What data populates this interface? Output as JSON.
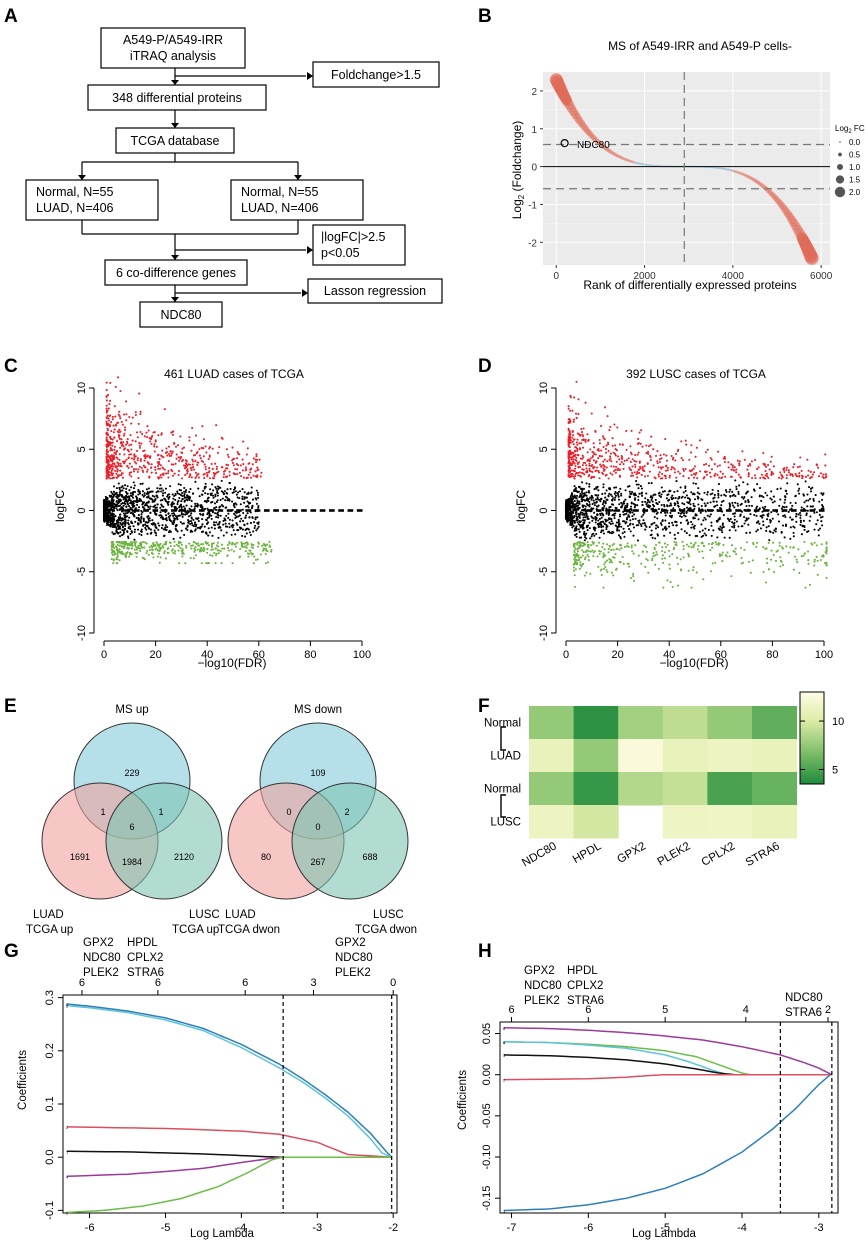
{
  "panel_labels": [
    "A",
    "B",
    "C",
    "D",
    "E",
    "F",
    "G",
    "H"
  ],
  "flowchart": {
    "boxes": [
      "A549-P/A549-IRR",
      "iTRAQ  analysis",
      "348  differential proteins",
      "TCGA database",
      "Normal, N=55",
      "LUAD, N=406",
      "Normal, N=55",
      "LUAD, N=406",
      "6 co-difference genes",
      "NDC80"
    ],
    "side_boxes": [
      "Foldchange>1.5",
      "|logFC|>2.5",
      "p<0.05",
      "Lasson regression"
    ]
  },
  "chart_data": [
    {
      "panel": "B",
      "type": "scatter",
      "title": "MS of A549-IRR and A549-P cells-",
      "xlabel": "Rank of differentially expressed proteins",
      "ylabel_main": "Log",
      "ylabel_sub": "2",
      "ylabel_rest": " (Foldchange)",
      "xlim": [
        -300,
        6200
      ],
      "ylim": [
        -2.6,
        2.5
      ],
      "xticks": [
        0,
        2000,
        4000,
        6000
      ],
      "yticks": [
        -2,
        -1,
        0,
        1,
        2
      ],
      "hlines_dashed": [
        0.585,
        -0.585
      ],
      "vline_dashed": 2900,
      "annotation": "NDC80",
      "annotation_point": [
        190,
        0.62
      ],
      "legend_title": "Log",
      "legend_title_sub": "2",
      "legend_title_rest": " FC",
      "legend_entries": [
        "0.0",
        "0.5",
        "1.0",
        "1.5",
        "2.0"
      ],
      "n_points": 5800,
      "max_fc": 2.3,
      "min_fc": -2.45
    },
    {
      "panel": "C",
      "type": "scatter",
      "title": "461 LUAD cases of TCGA",
      "xlabel": "−log10(FDR)",
      "ylabel": "logFC",
      "xlim": [
        0,
        100
      ],
      "ylim": [
        -10,
        10
      ],
      "xticks": [
        0,
        20,
        40,
        60,
        80,
        100
      ],
      "yticks": [
        -10,
        -5,
        0,
        5,
        10
      ],
      "threshold": 2.5,
      "up_max": 11.3,
      "down_min": -4.3,
      "x_spread": 60
    },
    {
      "panel": "D",
      "type": "scatter",
      "title": "392 LUSC cases of TCGA",
      "xlabel": "−log10(FDR)",
      "ylabel": "logFC",
      "xlim": [
        0,
        100
      ],
      "ylim": [
        -10,
        10
      ],
      "xticks": [
        0,
        20,
        40,
        60,
        80,
        100
      ],
      "yticks": [
        -10,
        -5,
        0,
        5,
        10
      ],
      "threshold": 2.5,
      "up_max": 10.5,
      "down_min": -6.3,
      "x_spread": 100
    },
    {
      "panel": "E1",
      "type": "venn",
      "sets": [
        "MS up",
        "LUAD\nTCGA up",
        "LUSC\nTCGA up"
      ],
      "regions": {
        "a_only": 229,
        "ab": 1,
        "ac": 1,
        "abc": 6,
        "b_only": 1691,
        "bc": 1984,
        "c_only": 2120
      }
    },
    {
      "panel": "E2",
      "type": "venn",
      "sets": [
        "MS down",
        "LUAD\nTCGA dwon",
        "LUSC\nTCGA dwon"
      ],
      "regions": {
        "a_only": 109,
        "ab": 0,
        "ac": 2,
        "abc": 0,
        "b_only": 80,
        "bc": 267,
        "c_only": 688
      }
    },
    {
      "panel": "F",
      "type": "heatmap",
      "rows": [
        "Normal",
        "LUAD",
        "Normal",
        "LUSC"
      ],
      "columns": [
        "NDC80",
        "HPDL",
        "GPX2",
        "PLEK2",
        "CPLX2",
        "STRA6"
      ],
      "values": [
        [
          7.5,
          4.0,
          8.0,
          9.0,
          7.5,
          5.8
        ],
        [
          11.0,
          7.5,
          12.5,
          11.0,
          11.3,
          11.0
        ],
        [
          7.5,
          4.3,
          8.6,
          9.2,
          5.0,
          6.0
        ],
        [
          11.3,
          9.7,
          13.5,
          11.4,
          11.5,
          11.0
        ]
      ],
      "colorbar_ticks": [
        5,
        10
      ],
      "vmin": 3.5,
      "vmax": 13
    },
    {
      "panel": "G",
      "type": "line",
      "xlabel": "Log Lambda",
      "ylabel": "Coefficients",
      "xlim": [
        -6.35,
        -1.95
      ],
      "ylim": [
        -0.105,
        0.305
      ],
      "xticks": [
        -6,
        -5,
        -4,
        -3,
        -2
      ],
      "yticks": [
        -0.1,
        0.0,
        0.1,
        0.2,
        0.3
      ],
      "ytick_labels": [
        "-0.1",
        "0.0",
        "0.1",
        "0.2",
        "0.3"
      ],
      "top_ticks": [
        -6.1,
        -5.1,
        -3.95,
        -3.05,
        -2.0
      ],
      "top_tick_labels": [
        "6",
        "6",
        "6",
        "3",
        "0"
      ],
      "top_gene_labels": [
        "GPX2",
        "NDC80",
        "PLEK2",
        "HPDL",
        "CPLX2",
        "STRA6",
        "GPX2",
        "NDC80",
        "PLEK2"
      ],
      "vlines": [
        -3.45,
        -2.02
      ],
      "series": [
        {
          "name": "6",
          "color": "#2e7fb8",
          "x": [
            -6.3,
            -6,
            -5.5,
            -5,
            -4.5,
            -4,
            -3.5,
            -3.2,
            -2.9,
            -2.6,
            -2.3,
            -2.1,
            -2.02
          ],
          "y": [
            0.288,
            0.284,
            0.275,
            0.262,
            0.242,
            0.212,
            0.175,
            0.148,
            0.118,
            0.085,
            0.045,
            0.012,
            0
          ]
        },
        {
          "name": "5",
          "color": "#5ec4d8",
          "x": [
            -6.3,
            -6,
            -5.5,
            -5,
            -4.5,
            -4,
            -3.5,
            -3.2,
            -2.9,
            -2.6,
            -2.3,
            -2.15,
            -2.02
          ],
          "y": [
            0.285,
            0.281,
            0.272,
            0.258,
            0.238,
            0.206,
            0.168,
            0.142,
            0.112,
            0.078,
            0.035,
            0.008,
            0
          ]
        },
        {
          "name": "2",
          "color": "#d95060",
          "x": [
            -6.3,
            -5,
            -4,
            -3.5,
            -3,
            -2.6,
            -2.02
          ],
          "y": [
            0.057,
            0.054,
            0.049,
            0.043,
            0.028,
            0.005,
            0
          ]
        },
        {
          "name": "1",
          "color": "#111111",
          "x": [
            -6.3,
            -5.5,
            -5,
            -4.5,
            -4,
            -3.6,
            -3.45,
            -2.02
          ],
          "y": [
            0.011,
            0.01,
            0.008,
            0.006,
            0.003,
            0.0005,
            0,
            0
          ]
        },
        {
          "name": "4",
          "color": "#9c3a9c",
          "x": [
            -6.3,
            -5.5,
            -5,
            -4.5,
            -4,
            -3.6,
            -3.45,
            -2.02
          ],
          "y": [
            -0.036,
            -0.032,
            -0.027,
            -0.021,
            -0.01,
            -0.002,
            0,
            0
          ]
        },
        {
          "name": "3",
          "color": "#6cbd45",
          "x": [
            -6.3,
            -5.8,
            -5.3,
            -4.8,
            -4.3,
            -3.9,
            -3.6,
            -3.45,
            -2.02
          ],
          "y": [
            -0.104,
            -0.1,
            -0.092,
            -0.078,
            -0.055,
            -0.028,
            -0.005,
            0,
            0
          ]
        }
      ]
    },
    {
      "panel": "H",
      "type": "line",
      "xlabel": "Log Lambda",
      "ylabel": "Coefficients",
      "xlim": [
        -7.15,
        -2.75
      ],
      "ylim": [
        -0.168,
        0.064
      ],
      "xticks": [
        -7,
        -6,
        -5,
        -4,
        -3
      ],
      "yticks": [
        -0.15,
        -0.1,
        -0.05,
        0.0,
        0.05
      ],
      "ytick_labels": [
        "-0.15",
        "-0.10",
        "-0.05",
        "0.00",
        "0.05"
      ],
      "top_ticks": [
        -7.0,
        -6.0,
        -5.0,
        -3.95,
        -2.88
      ],
      "top_tick_labels": [
        "6",
        "6",
        "5",
        "4",
        "2"
      ],
      "top_gene_labels": [
        "GPX2",
        "NDC80",
        "PLEK2",
        "HPDL",
        "CPLX2",
        "STRA6",
        "NDC80",
        "STRA6"
      ],
      "vlines": [
        -3.5,
        -2.83
      ],
      "series": [
        {
          "name": "6",
          "color": "#9c3a9c",
          "x": [
            -7.1,
            -6.5,
            -6,
            -5.5,
            -5,
            -4.5,
            -4,
            -3.5,
            -3.2,
            -3.0,
            -2.83
          ],
          "y": [
            0.057,
            0.056,
            0.054,
            0.051,
            0.047,
            0.042,
            0.034,
            0.024,
            0.015,
            0.008,
            0
          ]
        },
        {
          "name": "5",
          "color": "#6cbd45",
          "x": [
            -7.1,
            -6.5,
            -6,
            -5.5,
            -5,
            -4.6,
            -4.3,
            -4.0,
            -3.9,
            -2.83
          ],
          "y": [
            0.04,
            0.039,
            0.037,
            0.034,
            0.029,
            0.022,
            0.012,
            0.002,
            0,
            0
          ]
        },
        {
          "name": "4",
          "color": "#5ec4d8",
          "x": [
            -7.1,
            -6.5,
            -6,
            -5.5,
            -5,
            -4.7,
            -4.4,
            -4.2,
            -2.83
          ],
          "y": [
            0.04,
            0.039,
            0.036,
            0.032,
            0.024,
            0.016,
            0.006,
            0,
            0
          ]
        },
        {
          "name": "3",
          "color": "#111111",
          "x": [
            -7.1,
            -6.5,
            -6,
            -5.5,
            -5,
            -4.6,
            -4.3,
            -4.1,
            -2.83
          ],
          "y": [
            0.024,
            0.023,
            0.021,
            0.018,
            0.013,
            0.007,
            0.002,
            0,
            0
          ]
        },
        {
          "name": "2",
          "color": "#d95060",
          "x": [
            -7.1,
            -6,
            -5.5,
            -5.2,
            -5.0,
            -2.83
          ],
          "y": [
            -0.006,
            -0.005,
            -0.003,
            -0.001,
            0,
            0
          ]
        },
        {
          "name": "1",
          "color": "#2e7fb8",
          "x": [
            -7.1,
            -6.5,
            -6,
            -5.5,
            -5,
            -4.5,
            -4,
            -3.6,
            -3.3,
            -3.0,
            -2.85
          ],
          "y": [
            -0.165,
            -0.163,
            -0.158,
            -0.15,
            -0.138,
            -0.12,
            -0.094,
            -0.066,
            -0.041,
            -0.012,
            0
          ]
        }
      ]
    }
  ]
}
